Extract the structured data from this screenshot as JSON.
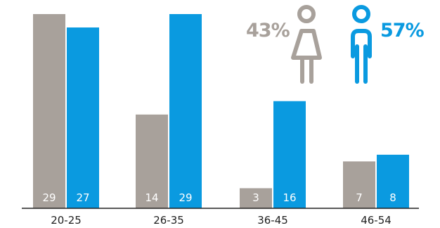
{
  "chart_data": {
    "type": "bar",
    "categories": [
      "20-25",
      "26-35",
      "36-45",
      "46-54"
    ],
    "series": [
      {
        "values": [
          29,
          14,
          3,
          7
        ],
        "color": "#a8a19b"
      },
      {
        "values": [
          27,
          29,
          16,
          8
        ],
        "color": "#0a9ae0"
      }
    ],
    "ylim": [
      0,
      29
    ],
    "grid": false,
    "annotations": {
      "female": {
        "text": "43%",
        "icon": "female-person-icon",
        "color": "#a8a19b"
      },
      "male": {
        "text": "57%",
        "icon": "male-person-icon",
        "color": "#0a9ae0"
      }
    }
  }
}
